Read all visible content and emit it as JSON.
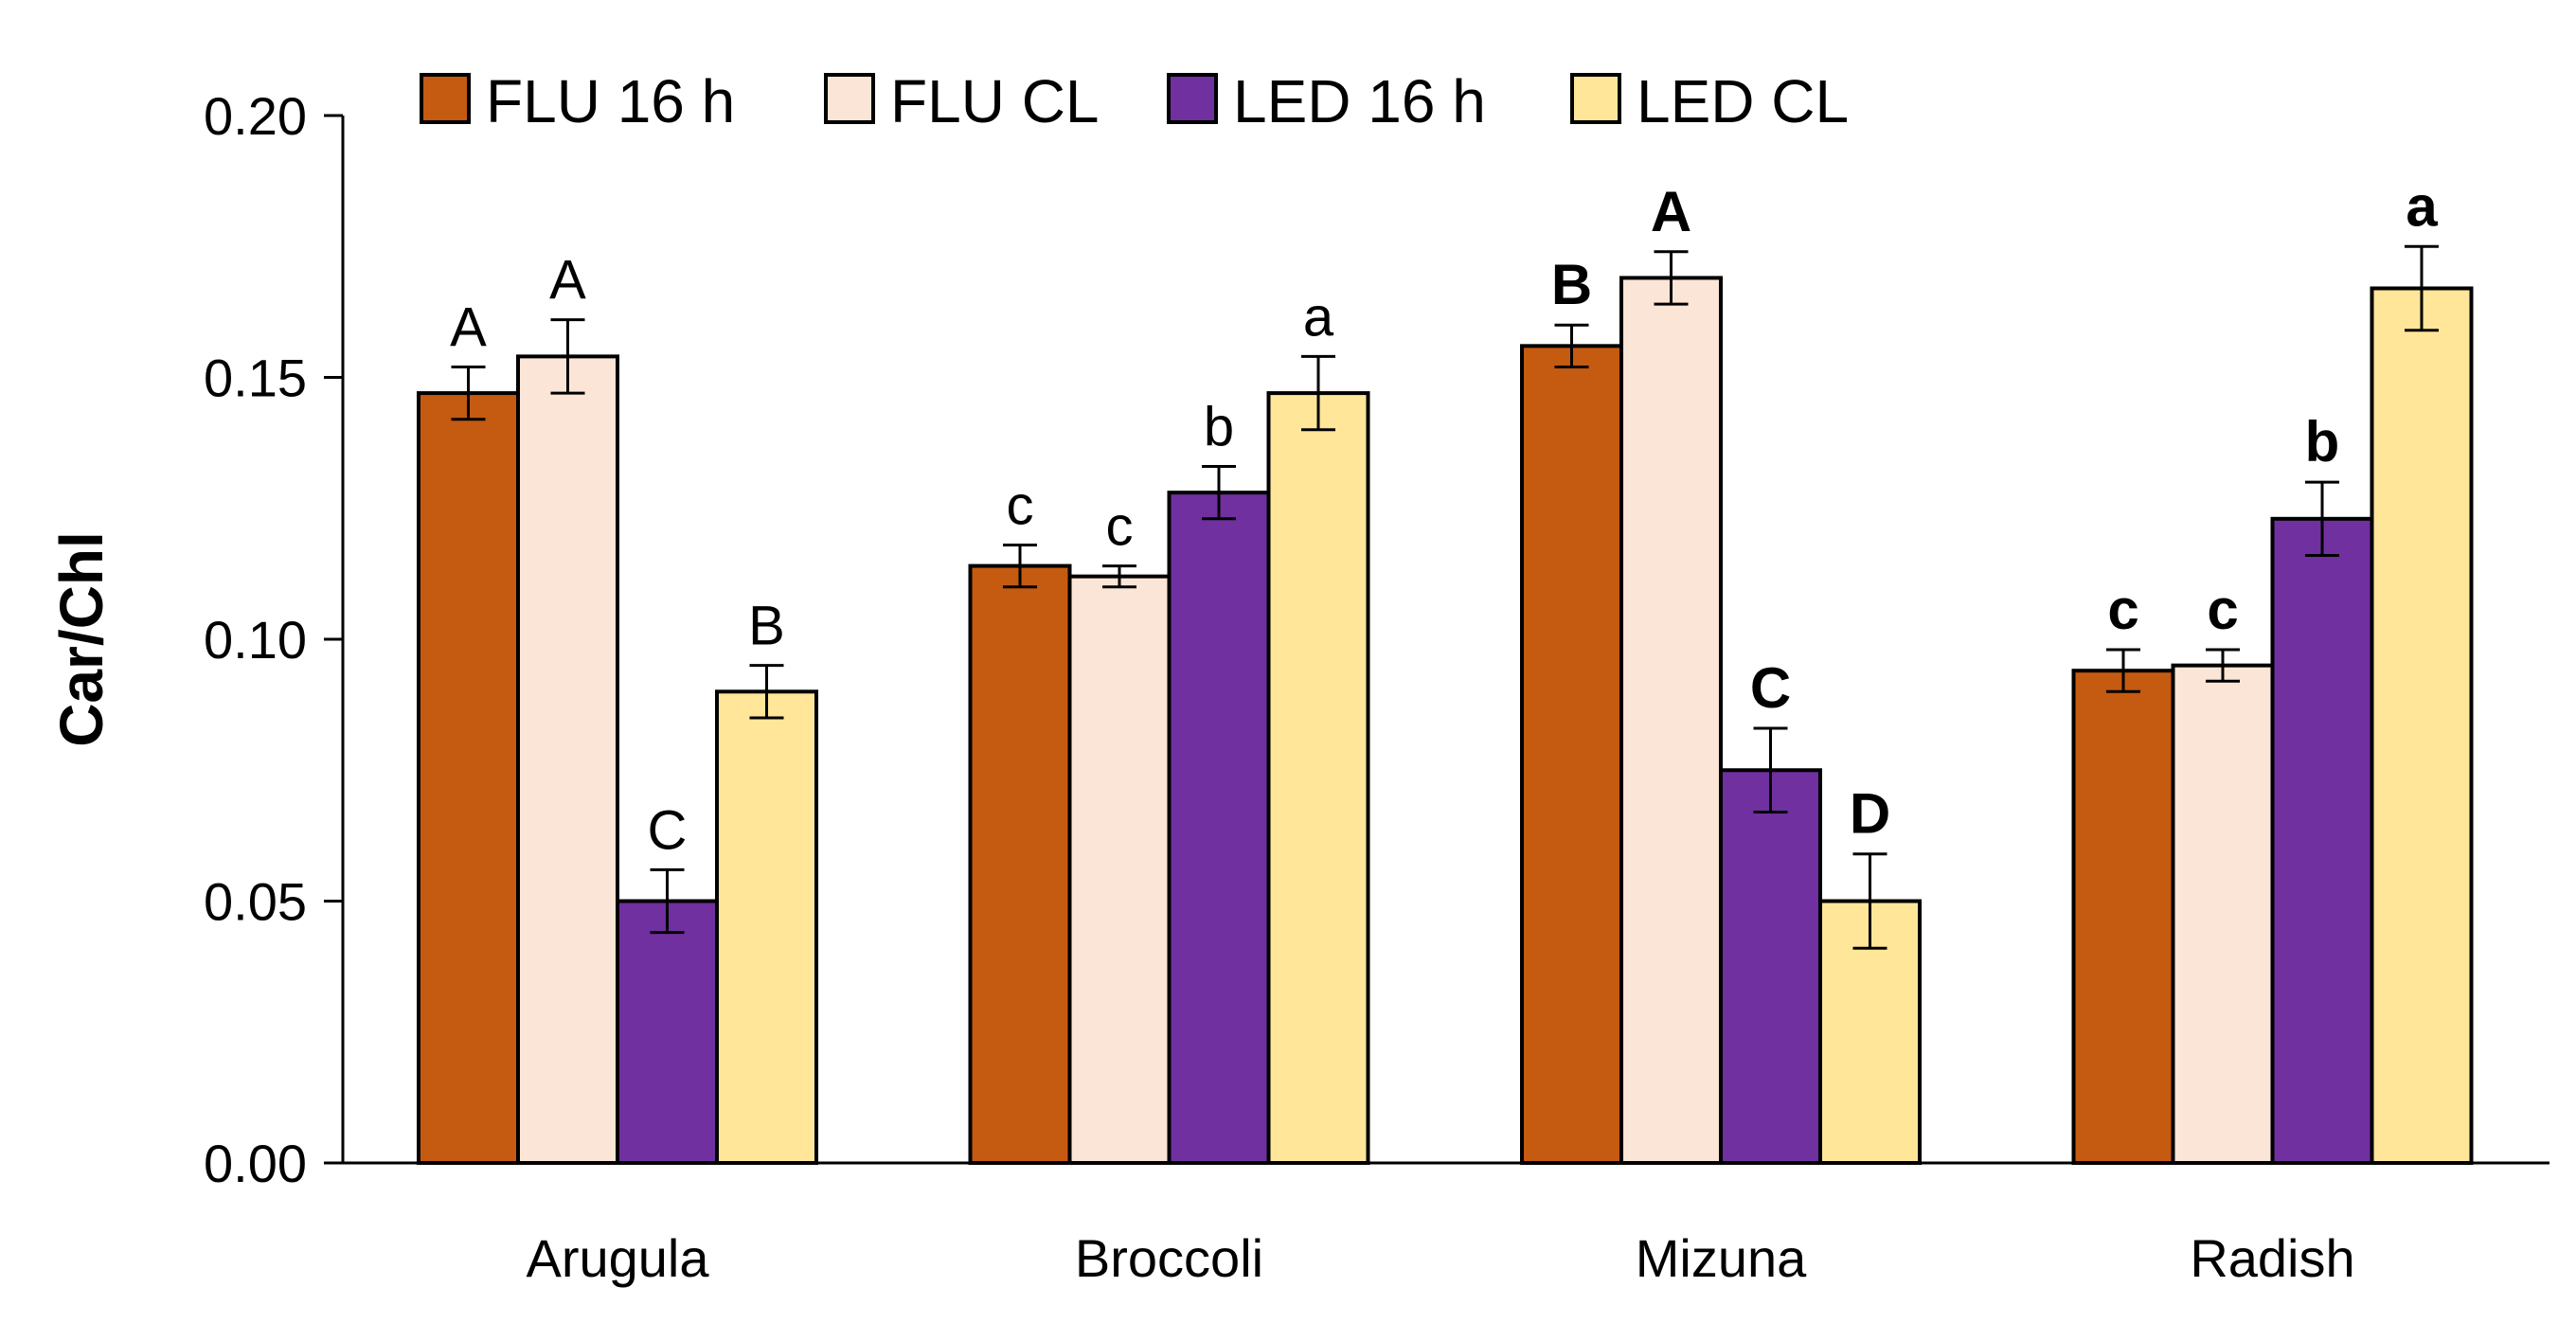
{
  "chart_data": {
    "type": "bar",
    "title": "",
    "xlabel": "",
    "ylabel": "Car/Chl",
    "ylim": [
      0,
      0.2
    ],
    "yticks": [
      "0.00",
      "0.05",
      "0.10",
      "0.15",
      "0.20"
    ],
    "ytick_values": [
      0,
      0.05,
      0.1,
      0.15,
      0.2
    ],
    "grid": false,
    "legend_position": "top",
    "categories": [
      "Arugula",
      "Broccoli",
      "Mizuna",
      "Radish"
    ],
    "bold_significance_categories": [
      "Mizuna",
      "Radish"
    ],
    "series": [
      {
        "name": "FLU 16 h",
        "color": "#C55A11",
        "values": [
          0.147,
          0.114,
          0.156,
          0.094
        ],
        "errors": [
          0.005,
          0.004,
          0.004,
          0.004
        ],
        "labels": [
          "A",
          "c",
          "B",
          "c"
        ]
      },
      {
        "name": "FLU CL",
        "color": "#FBE5D6",
        "values": [
          0.154,
          0.112,
          0.169,
          0.095
        ],
        "errors": [
          0.007,
          0.002,
          0.005,
          0.003
        ],
        "labels": [
          "A",
          "c",
          "A",
          "c"
        ]
      },
      {
        "name": "LED 16 h",
        "color": "#7030A0",
        "values": [
          0.05,
          0.128,
          0.075,
          0.123
        ],
        "errors": [
          0.006,
          0.005,
          0.008,
          0.007
        ],
        "labels": [
          "C",
          "b",
          "C",
          "b"
        ]
      },
      {
        "name": "LED CL",
        "color": "#FFE699",
        "values": [
          0.09,
          0.147,
          0.05,
          0.167
        ],
        "errors": [
          0.005,
          0.007,
          0.009,
          0.008
        ],
        "labels": [
          "B",
          "a",
          "D",
          "a"
        ]
      }
    ]
  }
}
